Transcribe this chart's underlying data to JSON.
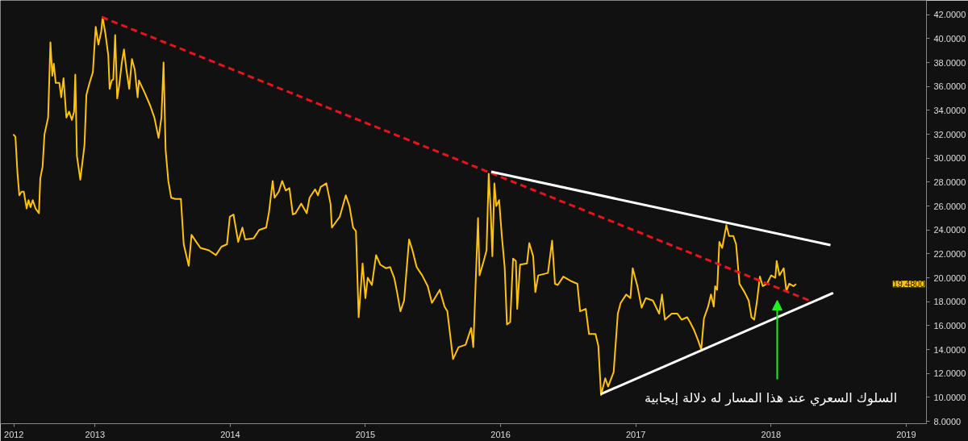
{
  "chart_data": {
    "type": "line",
    "annotations": [
      "السلوك السعري عند هذا المسار له دلالة إيجابية",
      "19.4800"
    ],
    "xlim": [
      2012.3,
      2019.15
    ],
    "ylim": [
      7.8,
      43.2
    ],
    "xticks": [
      {
        "value": 2012.4,
        "label": "2012"
      },
      2013,
      2014,
      2015,
      2016,
      2017,
      2018,
      2019
    ],
    "yticks": [
      {
        "value": 8,
        "label": "8.0000"
      },
      {
        "value": 10,
        "label": "10.0000"
      },
      {
        "value": 12,
        "label": "12.0000"
      },
      {
        "value": 14,
        "label": "14.0000"
      },
      {
        "value": 16,
        "label": "16.0000"
      },
      {
        "value": 18,
        "label": "18.0000"
      },
      {
        "value": 20,
        "label": "20.0000"
      },
      {
        "value": 22,
        "label": "22.0000"
      },
      {
        "value": 24,
        "label": "24.0000"
      },
      {
        "value": 26,
        "label": "26.0000"
      },
      {
        "value": 28,
        "label": "28.0000"
      },
      {
        "value": 30,
        "label": "30.0000"
      },
      {
        "value": 32,
        "label": "32.0000"
      },
      {
        "value": 34,
        "label": "34.0000"
      },
      {
        "value": 36,
        "label": "36.0000"
      },
      {
        "value": 38,
        "label": "38.0000"
      },
      {
        "value": 40,
        "label": "40.0000"
      },
      {
        "value": 42,
        "label": "42.0000"
      }
    ],
    "grid": false,
    "marker": "none",
    "series": [
      {
        "color": "#ffc20e",
        "line_style": "solid",
        "x": [
          2012.395,
          2012.411,
          2012.426,
          2012.44,
          2012.457,
          2012.473,
          2012.494,
          2012.508,
          2012.523,
          2012.539,
          2012.56,
          2012.585,
          2012.595,
          2012.612,
          2012.626,
          2012.653,
          2012.67,
          2012.684,
          2012.695,
          2012.709,
          2012.736,
          2012.75,
          2012.767,
          2012.788,
          2012.808,
          2012.829,
          2012.845,
          2012.854,
          2012.866,
          2012.891,
          2012.922,
          2012.936,
          2012.957,
          2012.984,
          2013.005,
          2013.025,
          2013.046,
          2013.056,
          2013.077,
          2013.098,
          2013.108,
          2013.123,
          2013.135,
          2013.149,
          2013.164,
          2013.18,
          2013.197,
          2013.214,
          2013.232,
          2013.253,
          2013.273,
          2013.294,
          2013.315,
          2013.325,
          2013.366,
          2013.408,
          2013.439,
          2013.47,
          2013.491,
          2013.507,
          2013.522,
          2013.542,
          2013.563,
          2013.594,
          2013.635,
          2013.656,
          2013.693,
          2013.714,
          2013.749,
          2013.78,
          2013.842,
          2013.894,
          2013.935,
          2013.976,
          2013.997,
          2014.024,
          2014.059,
          2014.09,
          2014.111,
          2014.173,
          2014.214,
          2014.266,
          2014.287,
          2014.314,
          2014.328,
          2014.359,
          2014.384,
          2014.411,
          2014.438,
          2014.463,
          2014.483,
          2014.525,
          2014.566,
          2014.587,
          2014.628,
          2014.649,
          2014.669,
          2014.711,
          2014.742,
          2014.752,
          2014.81,
          2014.855,
          2014.882,
          2014.909,
          2014.93,
          2014.95,
          2014.979,
          2015.0,
          2015.017,
          2015.048,
          2015.079,
          2015.11,
          2015.151,
          2015.182,
          2015.213,
          2015.234,
          2015.259,
          2015.286,
          2015.323,
          2015.348,
          2015.379,
          2015.42,
          2015.461,
          2015.492,
          2015.55,
          2015.585,
          2015.606,
          2015.648,
          2015.689,
          2015.741,
          2015.782,
          2015.798,
          2015.833,
          2015.844,
          2015.875,
          2015.896,
          2015.912,
          2015.927,
          2015.939,
          2015.954,
          2015.968,
          2015.989,
          2016.009,
          2016.03,
          2016.047,
          2016.071,
          2016.092,
          2016.113,
          2016.123,
          2016.144,
          2016.195,
          2016.212,
          2016.241,
          2016.257,
          2016.278,
          2016.35,
          2016.381,
          2016.402,
          2016.423,
          2016.464,
          2016.526,
          2016.568,
          2016.588,
          2016.63,
          2016.654,
          2016.702,
          2016.723,
          2016.743,
          2016.774,
          2016.795,
          2016.836,
          2016.867,
          2016.888,
          2016.929,
          2016.96,
          2016.977,
          2017.012,
          2017.043,
          2017.074,
          2017.126,
          2017.173,
          2017.194,
          2017.215,
          2017.266,
          2017.308,
          2017.339,
          2017.38,
          2017.401,
          2017.432,
          2017.463,
          2017.484,
          2017.504,
          2017.535,
          2017.556,
          2017.577,
          2017.587,
          2017.602,
          2017.618,
          2017.639,
          2017.67,
          2017.69,
          2017.721,
          2017.742,
          2017.767,
          2017.804,
          2017.835,
          2017.856,
          2017.876,
          2017.897,
          2017.918,
          2017.939,
          2017.97,
          2018.001,
          2018.032,
          2018.042,
          2018.063,
          2018.094,
          2018.114,
          2018.135,
          2018.166,
          2018.186
        ],
        "values": [
          32.0,
          31.8,
          28.8,
          26.9,
          27.2,
          27.2,
          25.8,
          26.5,
          25.9,
          26.5,
          25.8,
          25.4,
          28.3,
          29.3,
          32.0,
          33.4,
          39.7,
          36.9,
          37.9,
          36.3,
          36.3,
          35.1,
          36.7,
          33.4,
          33.9,
          33.2,
          33.9,
          37.0,
          30.2,
          28.2,
          31.1,
          35.3,
          36.2,
          37.2,
          41.0,
          39.5,
          40.6,
          41.8,
          40.4,
          38.6,
          35.8,
          36.5,
          36.6,
          40.3,
          35.0,
          36.2,
          37.9,
          39.1,
          37.4,
          35.8,
          38.3,
          37.4,
          35.1,
          36.5,
          35.5,
          34.4,
          33.4,
          31.7,
          33.4,
          38.0,
          30.7,
          28.1,
          26.7,
          26.6,
          26.6,
          22.8,
          21.0,
          23.6,
          23.0,
          22.5,
          22.3,
          21.9,
          22.6,
          22.8,
          25.1,
          25.3,
          23.0,
          24.2,
          23.2,
          23.3,
          24.0,
          24.2,
          25.5,
          28.1,
          26.7,
          27.2,
          28.1,
          27.3,
          27.5,
          25.3,
          25.4,
          26.2,
          25.4,
          26.7,
          27.4,
          26.9,
          27.6,
          27.9,
          26.2,
          24.2,
          25.1,
          26.9,
          26.0,
          24.2,
          23.9,
          16.7,
          21.2,
          18.3,
          20.0,
          19.4,
          21.9,
          21.1,
          20.8,
          20.9,
          20.0,
          18.8,
          17.2,
          18.1,
          23.2,
          22.3,
          20.9,
          20.2,
          19.3,
          17.9,
          19.0,
          17.6,
          17.2,
          13.2,
          14.2,
          14.4,
          15.8,
          14.2,
          25.0,
          20.2,
          21.4,
          22.3,
          28.7,
          25.5,
          21.8,
          27.9,
          26.0,
          26.5,
          23.5,
          20.9,
          16.1,
          16.3,
          21.6,
          21.4,
          17.4,
          21.1,
          21.2,
          22.9,
          21.8,
          18.8,
          20.2,
          20.4,
          23.1,
          19.5,
          19.4,
          20.1,
          19.7,
          19.5,
          17.2,
          17.4,
          15.3,
          15.3,
          14.3,
          10.2,
          11.6,
          10.9,
          12.1,
          17.0,
          17.9,
          18.6,
          18.3,
          20.8,
          19.3,
          17.5,
          18.3,
          18.1,
          17.0,
          18.6,
          16.5,
          17.0,
          17.0,
          16.5,
          16.7,
          16.3,
          15.6,
          14.7,
          14.0,
          16.6,
          17.6,
          18.6,
          17.6,
          19.3,
          19.0,
          23.0,
          22.5,
          24.4,
          23.5,
          23.5,
          22.8,
          19.5,
          18.8,
          18.1,
          16.7,
          16.5,
          18.1,
          20.1,
          19.3,
          19.5,
          20.2,
          20.0,
          21.4,
          20.2,
          20.8,
          18.9,
          19.5,
          19.3,
          19.48
        ]
      },
      {
        "color": "#e8141b",
        "line_style": "dashed",
        "x": [
          2013.05,
          2018.29
        ],
        "values": [
          41.8,
          18.07
        ]
      },
      {
        "color": "#ffffff",
        "line_style": "solid",
        "x": [
          2015.93,
          2018.44
        ],
        "values": [
          28.87,
          22.73
        ]
      },
      {
        "color": "#ffffff",
        "line_style": "solid",
        "x": [
          2016.74,
          2018.46
        ],
        "values": [
          10.27,
          18.73
        ]
      }
    ]
  }
}
